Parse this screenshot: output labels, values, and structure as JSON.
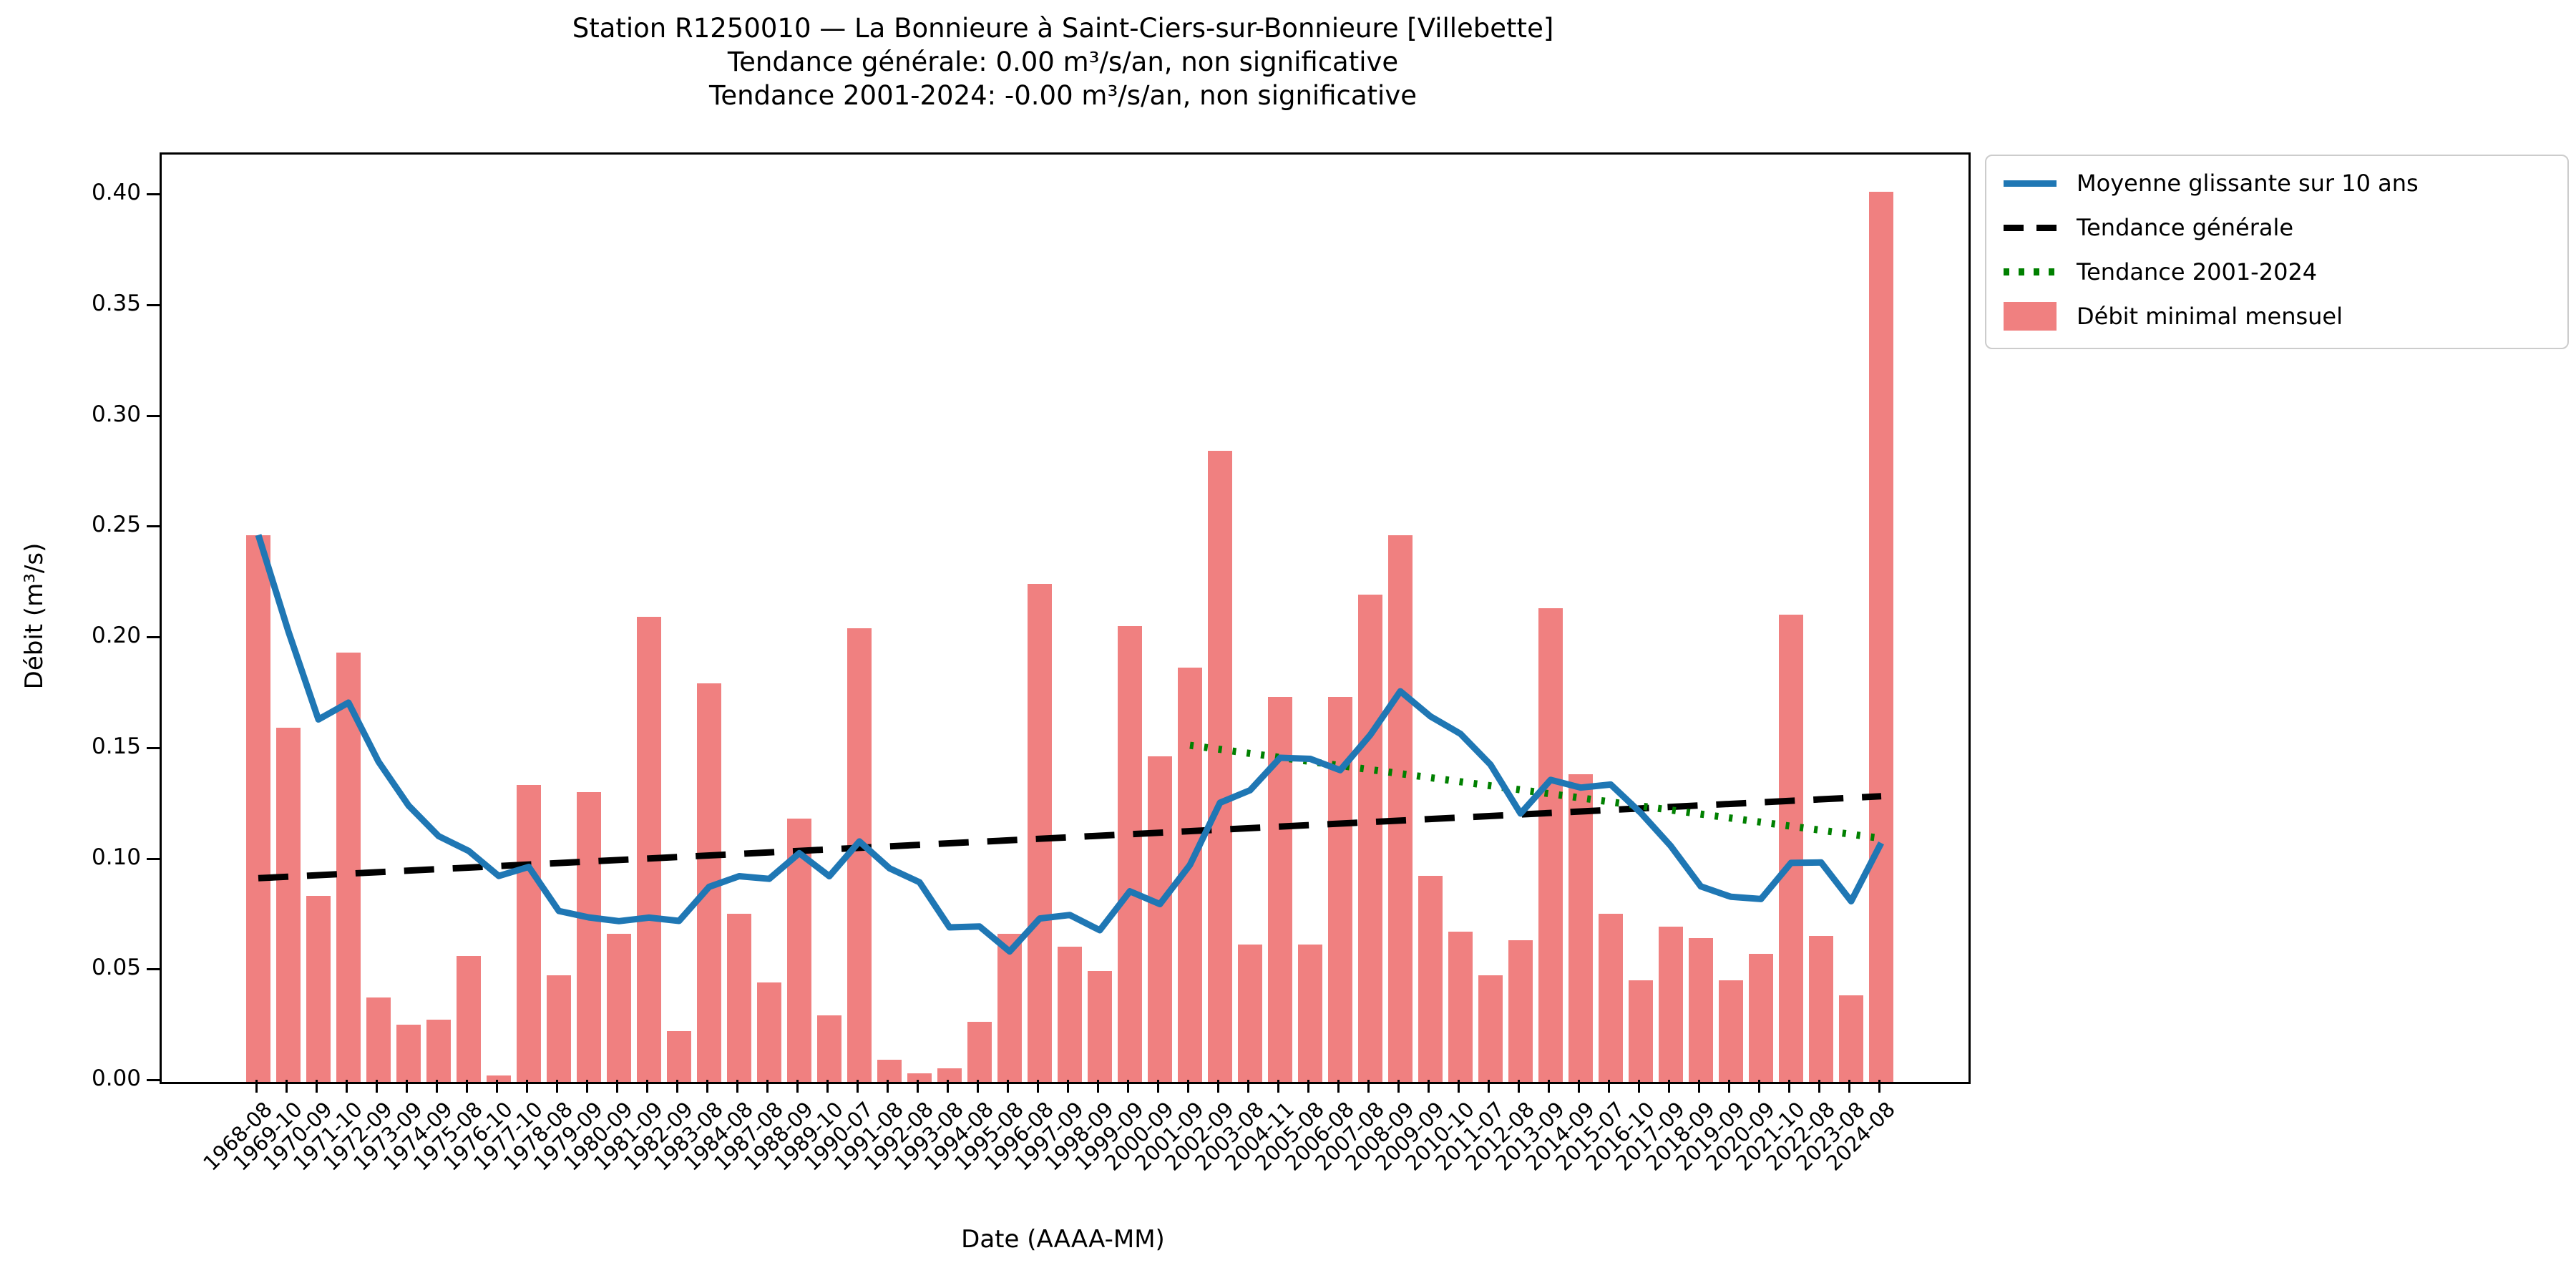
{
  "title": {
    "line1": "Station R1250010 — La Bonnieure à Saint-Ciers-sur-Bonnieure [Villebette]",
    "line2": "Tendance générale: 0.00 m³/s/an, non significative",
    "line3": "Tendance 2001-2024: -0.00 m³/s/an, non significative"
  },
  "axes": {
    "xlabel": "Date (AAAA-MM)",
    "ylabel": "Débit (m³/s)",
    "ytick_labels": [
      "0.00",
      "0.05",
      "0.10",
      "0.15",
      "0.20",
      "0.25",
      "0.30",
      "0.35",
      "0.40"
    ],
    "ytick_values": [
      0.0,
      0.05,
      0.1,
      0.15,
      0.2,
      0.25,
      0.3,
      0.35,
      0.4
    ],
    "ylim": [
      0,
      0.4188
    ]
  },
  "legend": {
    "items": [
      {
        "label": "Moyenne glissante sur 10 ans",
        "swatch": "line",
        "color": "#1f77b4"
      },
      {
        "label": "Tendance générale",
        "swatch": "dash",
        "color": "#000000"
      },
      {
        "label": "Tendance 2001-2024",
        "swatch": "dot",
        "color": "#008000"
      },
      {
        "label": "Débit minimal mensuel",
        "swatch": "patch",
        "color": "#f08080"
      }
    ]
  },
  "colors": {
    "bar": "#f08080",
    "rolling_mean": "#1f77b4",
    "general_trend": "#000000",
    "trend_2001_2024": "#008000"
  },
  "chart_data": {
    "type": "bar",
    "title": "Station R1250010 — La Bonnieure à Saint-Ciers-sur-Bonnieure [Villebette]",
    "xlabel": "Date (AAAA-MM)",
    "ylabel": "Débit (m³/s)",
    "ylim": [
      0,
      0.4188
    ],
    "grid": false,
    "legend_position": "outside upper right",
    "categories": [
      "1968-08",
      "1969-10",
      "1970-09",
      "1971-10",
      "1972-09",
      "1973-09",
      "1974-09",
      "1975-08",
      "1976-10",
      "1977-10",
      "1978-08",
      "1979-09",
      "1980-09",
      "1981-09",
      "1982-09",
      "1983-08",
      "1984-08",
      "1987-08",
      "1988-09",
      "1989-10",
      "1990-07",
      "1991-08",
      "1992-08",
      "1993-08",
      "1994-08",
      "1995-08",
      "1996-08",
      "1997-09",
      "1998-09",
      "1999-09",
      "2000-09",
      "2001-09",
      "2002-09",
      "2003-08",
      "2004-11",
      "2005-08",
      "2006-08",
      "2007-08",
      "2008-09",
      "2009-09",
      "2010-10",
      "2011-07",
      "2012-08",
      "2013-09",
      "2014-09",
      "2015-07",
      "2016-10",
      "2017-09",
      "2018-09",
      "2019-09",
      "2020-09",
      "2021-10",
      "2022-08",
      "2023-08",
      "2024-08"
    ],
    "series": [
      {
        "name": "Débit minimal mensuel",
        "type": "bar",
        "values": [
          0.247,
          0.16,
          0.084,
          0.194,
          0.038,
          0.026,
          0.028,
          0.057,
          0.003,
          0.134,
          0.048,
          0.131,
          0.067,
          0.21,
          0.023,
          0.18,
          0.076,
          0.045,
          0.119,
          0.03,
          0.205,
          0.01,
          0.004,
          0.006,
          0.027,
          0.067,
          0.225,
          0.061,
          0.05,
          0.206,
          0.147,
          0.187,
          0.285,
          0.062,
          0.174,
          0.062,
          0.174,
          0.22,
          0.247,
          0.093,
          0.068,
          0.048,
          0.064,
          0.214,
          0.139,
          0.076,
          0.046,
          0.07,
          0.065,
          0.046,
          0.058,
          0.211,
          0.066,
          0.039,
          0.402
        ]
      },
      {
        "name": "Moyenne glissante sur 10 ans",
        "type": "line",
        "values": [
          0.247,
          0.2035,
          0.1637,
          0.1713,
          0.1446,
          0.1248,
          0.111,
          0.1043,
          0.093,
          0.0971,
          0.0772,
          0.0743,
          0.0726,
          0.0742,
          0.0727,
          0.0881,
          0.0929,
          0.0917,
          0.1033,
          0.0929,
          0.1086,
          0.0965,
          0.0902,
          0.0698,
          0.0702,
          0.0589,
          0.0738,
          0.0754,
          0.0685,
          0.0861,
          0.0803,
          0.098,
          0.1261,
          0.1317,
          0.1464,
          0.1459,
          0.1408,
          0.1567,
          0.1764,
          0.1651,
          0.1572,
          0.1433,
          0.1212,
          0.1364,
          0.1329,
          0.1343,
          0.1215,
          0.1065,
          0.0883,
          0.0836,
          0.0826,
          0.0989,
          0.0991,
          0.0816,
          0.1079
        ]
      }
    ],
    "trend_lines": [
      {
        "name": "Tendance générale",
        "start_index": 0,
        "end_index": 54,
        "start_value": 0.092,
        "end_value": 0.129,
        "style": "dashed",
        "color": "#000000"
      },
      {
        "name": "Tendance 2001-2024",
        "start_index": 31,
        "end_index": 54,
        "start_value": 0.152,
        "end_value": 0.11,
        "style": "dotted",
        "color": "#008000"
      }
    ]
  }
}
